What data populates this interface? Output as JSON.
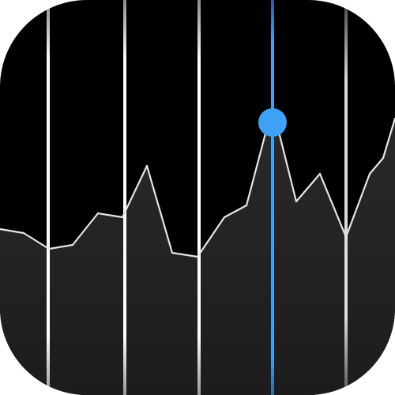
{
  "icon": {
    "name": "stocks-app-icon"
  },
  "chart_data": {
    "type": "area",
    "title": "",
    "xlabel": "",
    "ylabel": "",
    "x": [
      0,
      1,
      2,
      3,
      4,
      5,
      6,
      7,
      8,
      9,
      10,
      11,
      12,
      13,
      14,
      15,
      16,
      17
    ],
    "values": [
      42,
      41,
      37,
      38,
      46,
      45,
      58,
      36,
      35,
      45,
      48,
      73,
      49,
      56,
      40,
      56,
      60,
      70
    ],
    "ylim": [
      0,
      100
    ],
    "highlight_index": 11,
    "colors": {
      "background": "#000000",
      "area_top": "#2a2a2a",
      "area_bottom": "#1c1c1c",
      "line": "#e6e6e6",
      "gridline": "#ffffff",
      "highlight": "#3da2f5"
    }
  }
}
